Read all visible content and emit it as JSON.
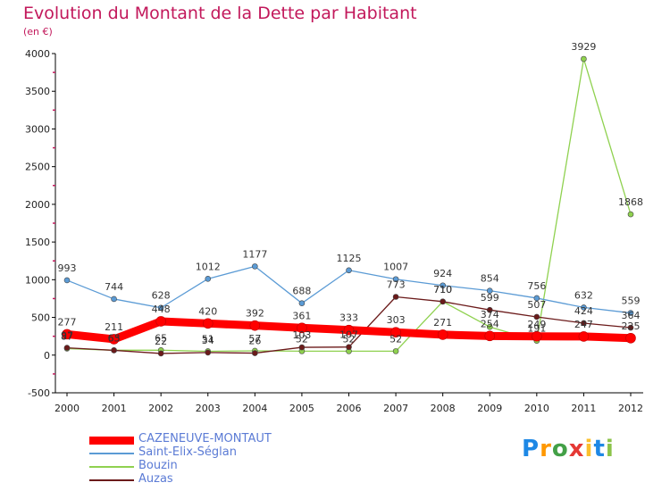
{
  "header": {
    "title": "Evolution du Montant de la Dette par Habitant",
    "subtitle": "(en €)"
  },
  "chart_data": {
    "type": "line",
    "title": "Evolution du Montant de la Dette par Habitant",
    "subtitle": "(en €)",
    "xlabel": "",
    "ylabel": "",
    "x": [
      "2000",
      "2001",
      "2002",
      "2003",
      "2004",
      "2005",
      "2006",
      "2007",
      "2008",
      "2009",
      "2010",
      "2011",
      "2012"
    ],
    "ylim": [
      -500,
      4000
    ],
    "yticks": [
      -500,
      0,
      500,
      1000,
      1500,
      2000,
      2500,
      3000,
      3500,
      4000
    ],
    "grid": false,
    "legend_position": "bottom-left",
    "series": [
      {
        "name": "CAZENEUVE-MONTAUT",
        "color": "#ff0000",
        "values": [
          277,
          211,
          448,
          420,
          392,
          361,
          333,
          303,
          271,
          254,
          249,
          247,
          225
        ]
      },
      {
        "name": "Saint-Elix-Séglan",
        "color": "#5b9bd5",
        "values": [
          993,
          744,
          628,
          1012,
          1177,
          688,
          1125,
          1007,
          924,
          854,
          756,
          632,
          559
        ]
      },
      {
        "name": "Bouzin",
        "color": "#8fd14f",
        "values": [
          87,
          65,
          65,
          51,
          57,
          52,
          52,
          52,
          710,
          374,
          191,
          3929,
          1868
        ]
      },
      {
        "name": "Auzas",
        "color": "#6b1a1a",
        "values": [
          97,
          63,
          22,
          34,
          26,
          103,
          107,
          773,
          710,
          599,
          507,
          424,
          364
        ]
      }
    ]
  },
  "logo": {
    "text": "Proxiti"
  }
}
